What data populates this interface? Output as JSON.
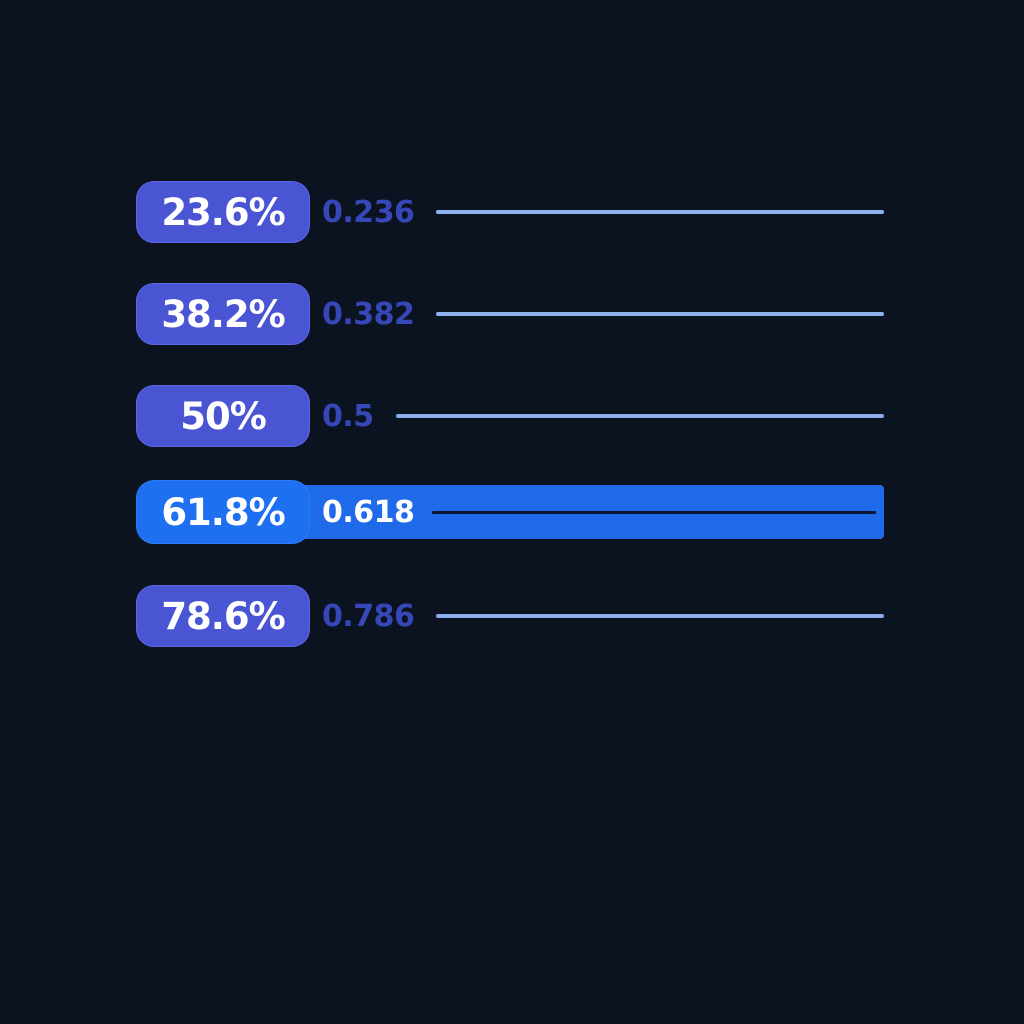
{
  "levels": [
    {
      "label": "23.6%",
      "ratio": "0.236"
    },
    {
      "label": "38.2%",
      "ratio": "0.382"
    },
    {
      "label": "50%",
      "ratio": "0.5"
    },
    {
      "label": "61.8%",
      "ratio": "0.618"
    },
    {
      "label": "78.6%",
      "ratio": "0.786"
    }
  ]
}
